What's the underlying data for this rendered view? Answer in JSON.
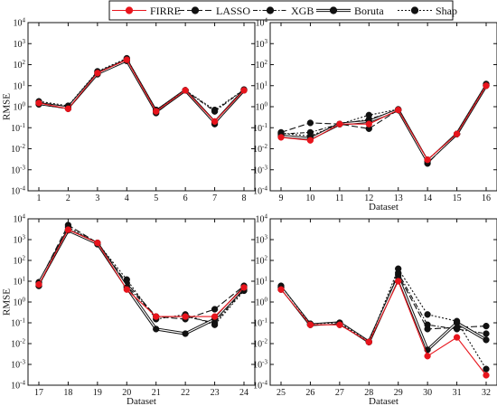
{
  "legend": {
    "entries": [
      {
        "name": "FIRRE",
        "color": "#e8141c",
        "dash": "solid"
      },
      {
        "name": "LASSO",
        "color": "#111111",
        "dash": "longdash"
      },
      {
        "name": "XGB",
        "color": "#111111",
        "dash": "dashdot"
      },
      {
        "name": "Boruta",
        "color": "#111111",
        "dash": "double"
      },
      {
        "name": "Shap",
        "color": "#111111",
        "dash": "dotted"
      }
    ]
  },
  "chart_data": [
    {
      "type": "line",
      "ylabel": "RMSE",
      "xlabel": "",
      "yscale": "log",
      "ylim": [
        0.0001,
        10000
      ],
      "yticks": [
        "10^-4",
        "10^-3",
        "10^-2",
        "10^-1",
        "10^0",
        "10^1",
        "10^2",
        "10^3",
        "10^4"
      ],
      "x": [
        1,
        2,
        3,
        4,
        5,
        6,
        7,
        8
      ],
      "series": [
        {
          "name": "FIRRE",
          "values": [
            1.5,
            0.8,
            40,
            170,
            0.6,
            6,
            0.2,
            6
          ]
        },
        {
          "name": "LASSO",
          "values": [
            1.3,
            0.8,
            35,
            150,
            0.5,
            6,
            0.15,
            6
          ]
        },
        {
          "name": "XGB",
          "values": [
            1.6,
            1.0,
            45,
            180,
            0.7,
            6,
            0.6,
            6.5
          ]
        },
        {
          "name": "Boruta",
          "values": [
            1.4,
            0.9,
            38,
            160,
            0.6,
            6,
            0.18,
            6
          ]
        },
        {
          "name": "Shap",
          "values": [
            1.8,
            1.1,
            48,
            200,
            0.7,
            6,
            0.7,
            6.5
          ]
        }
      ]
    },
    {
      "type": "line",
      "ylabel": "",
      "xlabel": "Dataset",
      "yscale": "log",
      "ylim": [
        0.0001,
        10000
      ],
      "yticks": [
        "10^-4",
        "10^-3",
        "10^-2",
        "10^-1",
        "10^0",
        "10^1",
        "10^2",
        "10^3",
        "10^4"
      ],
      "x": [
        9,
        10,
        11,
        12,
        13,
        14,
        15,
        16
      ],
      "series": [
        {
          "name": "FIRRE",
          "values": [
            0.035,
            0.025,
            0.15,
            0.15,
            0.7,
            0.003,
            0.05,
            10
          ]
        },
        {
          "name": "LASSO",
          "values": [
            0.06,
            0.17,
            0.15,
            0.09,
            0.7,
            0.002,
            0.05,
            10
          ]
        },
        {
          "name": "XGB",
          "values": [
            0.05,
            0.06,
            0.15,
            0.25,
            0.7,
            0.003,
            0.05,
            11
          ]
        },
        {
          "name": "Boruta",
          "values": [
            0.04,
            0.03,
            0.15,
            0.2,
            0.7,
            0.0025,
            0.05,
            10
          ]
        },
        {
          "name": "Shap",
          "values": [
            0.055,
            0.04,
            0.15,
            0.4,
            0.75,
            0.003,
            0.05,
            12
          ]
        }
      ]
    },
    {
      "type": "line",
      "ylabel": "RMSE",
      "xlabel": "Dataset",
      "yscale": "log",
      "ylim": [
        0.0001,
        10000
      ],
      "yticks": [
        "10^-4",
        "10^-3",
        "10^-2",
        "10^-1",
        "10^0",
        "10^1",
        "10^2",
        "10^3",
        "10^4"
      ],
      "x": [
        17,
        18,
        19,
        20,
        21,
        22,
        23,
        24
      ],
      "series": [
        {
          "name": "FIRRE",
          "values": [
            7,
            3000,
            700,
            4,
            0.2,
            0.2,
            0.2,
            5
          ]
        },
        {
          "name": "LASSO",
          "values": [
            9,
            5000,
            700,
            8,
            0.2,
            0.15,
            0.45,
            6
          ]
        },
        {
          "name": "XGB",
          "values": [
            6,
            3000,
            600,
            6,
            0.2,
            0.2,
            0.1,
            4
          ]
        },
        {
          "name": "Boruta",
          "values": [
            8,
            2800,
            650,
            5,
            0.05,
            0.03,
            0.15,
            5
          ]
        },
        {
          "name": "Shap",
          "values": [
            6,
            4000,
            700,
            12,
            0.15,
            0.25,
            0.08,
            3.5
          ]
        }
      ]
    },
    {
      "type": "line",
      "ylabel": "",
      "xlabel": "Dataset",
      "yscale": "log",
      "ylim": [
        0.0001,
        10000
      ],
      "yticks": [
        "10^-4",
        "10^-3",
        "10^-2",
        "10^-1",
        "10^0",
        "10^1",
        "10^2",
        "10^3",
        "10^4"
      ],
      "x": [
        25,
        26,
        27,
        28,
        29,
        30,
        31,
        32
      ],
      "series": [
        {
          "name": "FIRRE",
          "values": [
            4,
            0.08,
            0.08,
            0.012,
            10,
            0.0025,
            0.02,
            0.0003
          ]
        },
        {
          "name": "LASSO",
          "values": [
            5,
            0.08,
            0.09,
            0.012,
            20,
            0.05,
            0.06,
            0.07
          ]
        },
        {
          "name": "XGB",
          "values": [
            4,
            0.09,
            0.08,
            0.012,
            25,
            0.08,
            0.05,
            0.03
          ]
        },
        {
          "name": "Boruta",
          "values": [
            5,
            0.08,
            0.1,
            0.012,
            15,
            0.005,
            0.1,
            0.015
          ]
        },
        {
          "name": "Shap",
          "values": [
            6,
            0.09,
            0.1,
            0.012,
            40,
            0.25,
            0.12,
            0.0006
          ]
        }
      ]
    }
  ]
}
